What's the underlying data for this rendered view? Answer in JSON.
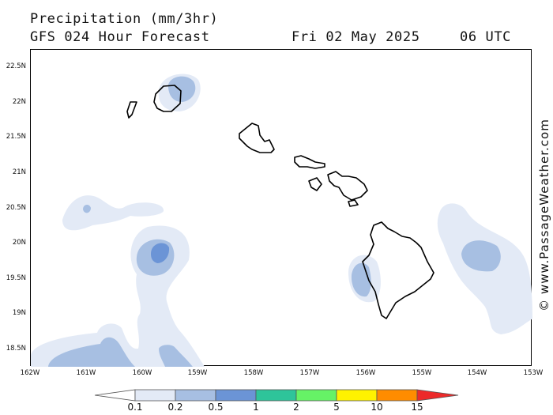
{
  "header": {
    "title": "Precipitation (mm/3hr)",
    "subtitle": "GFS 024 Hour Forecast",
    "date": "Fri 02 May 2025",
    "time": "06 UTC"
  },
  "watermark": "© www.PassageWeather.com",
  "map": {
    "latitude_labels": [
      "22.5N",
      "22N",
      "21.5N",
      "21N",
      "20.5N",
      "20N",
      "19.5N",
      "19N",
      "18.5N"
    ],
    "longitude_labels": [
      "162W",
      "161W",
      "160W",
      "159W",
      "158W",
      "157W",
      "156W",
      "155W",
      "154W",
      "153W"
    ],
    "extent": {
      "lon_min": -162,
      "lon_max": -153,
      "lat_min": 18.25,
      "lat_max": 22.75
    }
  },
  "colorbar": {
    "labels": [
      "0.1",
      "0.2",
      "0.5",
      "1",
      "2",
      "5",
      "10",
      "15"
    ],
    "colors": [
      "#ffffff",
      "#e3eaf6",
      "#a7bfe2",
      "#6b94d6",
      "#2ec49a",
      "#66f266",
      "#fff200",
      "#ff8c00",
      "#ec2a2a"
    ]
  }
}
